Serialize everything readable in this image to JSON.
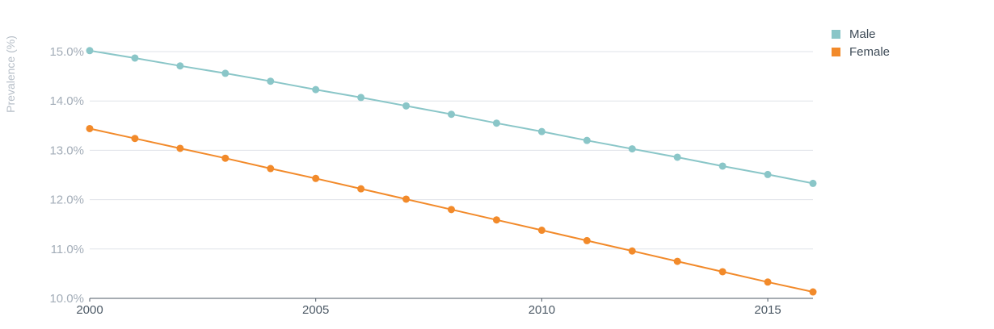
{
  "chart_data": {
    "type": "line",
    "title": "",
    "xlabel": "",
    "ylabel": "Prevalence (%)",
    "x": [
      2000,
      2001,
      2002,
      2003,
      2004,
      2005,
      2006,
      2007,
      2008,
      2009,
      2010,
      2011,
      2012,
      2013,
      2014,
      2015,
      2016
    ],
    "x_ticks": [
      "2000",
      "2005",
      "2010",
      "2015"
    ],
    "y_ticks": [
      "10.0%",
      "11.0%",
      "12.0%",
      "13.0%",
      "14.0%",
      "15.0%"
    ],
    "ylim": [
      10,
      15.5
    ],
    "grid": true,
    "legend_position": "top-right",
    "series": [
      {
        "name": "Male",
        "color": "#8ac6c8",
        "values": [
          15.02,
          14.87,
          14.71,
          14.56,
          14.4,
          14.23,
          14.07,
          13.9,
          13.73,
          13.55,
          13.38,
          13.2,
          13.03,
          12.86,
          12.68,
          12.51,
          12.33
        ]
      },
      {
        "name": "Female",
        "color": "#f28a2a",
        "values": [
          13.44,
          13.24,
          13.04,
          12.84,
          12.63,
          12.43,
          12.22,
          12.01,
          11.8,
          11.59,
          11.38,
          11.17,
          10.96,
          10.75,
          10.54,
          10.33,
          10.13
        ]
      }
    ]
  }
}
